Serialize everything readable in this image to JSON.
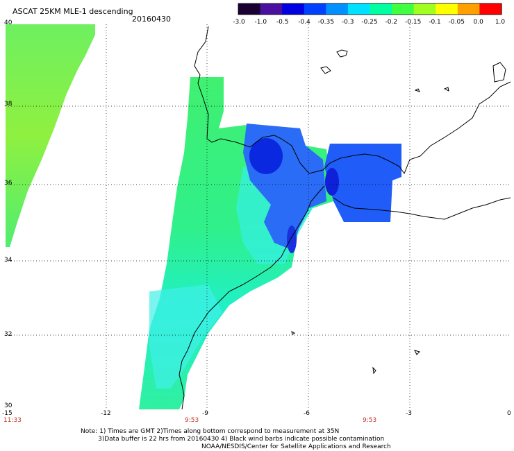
{
  "header": {
    "title": "ASCAT 25KM MLE-1 descending",
    "date": "20160430"
  },
  "colorbar": {
    "ticks": [
      "-3.0",
      "-1.0",
      "-0.5",
      "-0.4",
      "-0.35",
      "-0.3",
      "-0.25",
      "-0.2",
      "-0.15",
      "-0.1",
      "-0.05",
      "0.0",
      "1.0"
    ],
    "colors": [
      "#1a0033",
      "#4b0fa0",
      "#0000e0",
      "#0040ff",
      "#0090ff",
      "#00e0ff",
      "#00ffa0",
      "#40ff40",
      "#a0ff20",
      "#ffff00",
      "#ffa000",
      "#ff0000"
    ]
  },
  "map": {
    "lat_labels": [
      "40",
      "38",
      "36",
      "34",
      "32",
      "30"
    ],
    "lon_labels": [
      "-15",
      "-12",
      "-9",
      "-6",
      "-3",
      "0"
    ],
    "times": [
      "11:33",
      "9:53",
      "9:53"
    ],
    "lon_range": [
      -15,
      0
    ],
    "lat_range": [
      30,
      40
    ]
  },
  "notes": {
    "line1": "Note: 1) Times are GMT 2)Times along bottom correspond to measurement at 35N",
    "line2": "3)Data buffer is 22 hrs from 20160430 4) Black wind barbs indicate possible contamination",
    "line3": "NOAA/NESDIS/Center for Satellite Applications and Research"
  }
}
